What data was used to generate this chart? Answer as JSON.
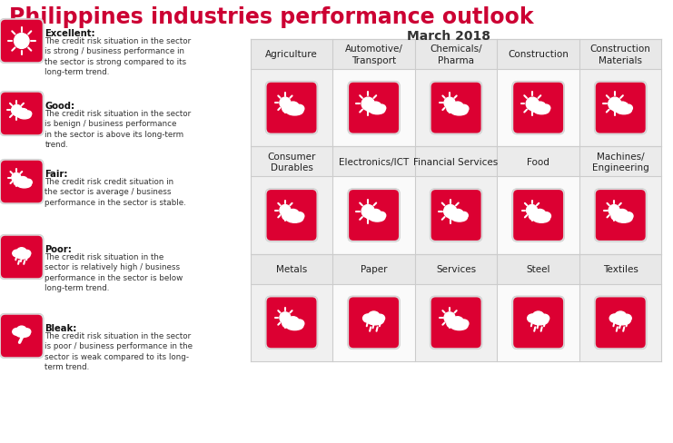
{
  "title": "Philippines industries performance outlook",
  "subtitle": "March 2018",
  "title_color": "#cc0033",
  "subtitle_color": "#333333",
  "bg_color": "#ffffff",
  "legend_items": [
    {
      "label": "Excellent:",
      "description": "The credit risk situation in the sector\nis strong / business performance in\nthe sector is strong compared to its\nlong-term trend.",
      "icon": "excellent"
    },
    {
      "label": "Good:",
      "description": "The credit risk situation in the sector\nis benign / business performance\nin the sector is above its long-term\ntrend.",
      "icon": "good"
    },
    {
      "label": "Fair:",
      "description": "The credit risk credit situation in\nthe sector is average / business\nperformance in the sector is stable.",
      "icon": "fair"
    },
    {
      "label": "Poor:",
      "description": "The credit risk situation in the\nsector is relatively high / business\nperformance in the sector is below\nlong-term trend.",
      "icon": "poor"
    },
    {
      "label": "Bleak:",
      "description": "The credit risk situation in the sector\nis poor / business performance in the\nsector is weak compared to its long-\nterm trend.",
      "icon": "bleak"
    }
  ],
  "rows": [
    {
      "industries": [
        "Agriculture",
        "Automotive/\nTransport",
        "Chemicals/\nPharma",
        "Construction",
        "Construction\nMaterials"
      ],
      "icons": [
        "fair",
        "good",
        "fair",
        "good",
        "good"
      ]
    },
    {
      "industries": [
        "Consumer\nDurables",
        "Electronics/ICT",
        "Financial Services",
        "Food",
        "Machines/\nEngineering"
      ],
      "icons": [
        "fair",
        "good",
        "good",
        "fair",
        "fair"
      ]
    },
    {
      "industries": [
        "Metals",
        "Paper",
        "Services",
        "Steel",
        "Textiles"
      ],
      "icons": [
        "fair",
        "poor",
        "fair",
        "poor",
        "poor"
      ]
    }
  ],
  "icon_bg_color": "#dc0032",
  "icon_fg_color": "#ffffff",
  "grid_line_color": "#cccccc",
  "label_bg_even": "#e8e8e8",
  "label_bg_odd": "#eeeeee",
  "icon_bg_white": "#f5f5f5"
}
